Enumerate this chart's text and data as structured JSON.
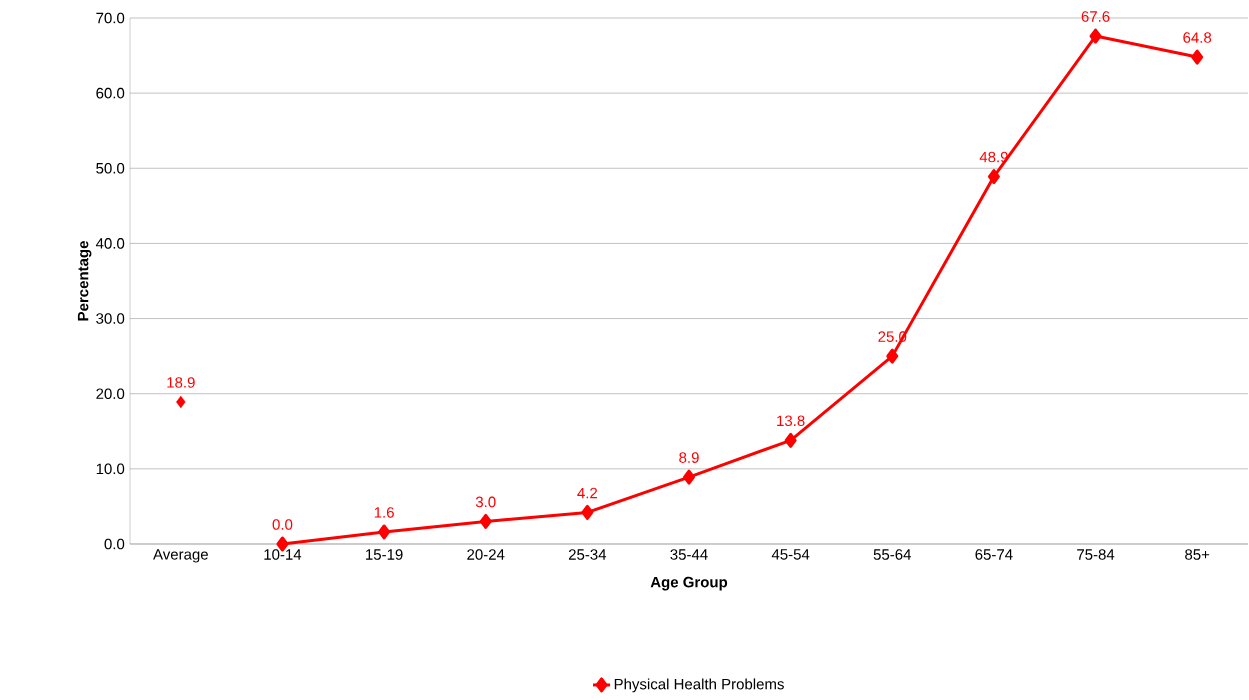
{
  "chart_data": {
    "type": "line",
    "xlabel": "Age Group",
    "ylabel": "Percentage",
    "categories": [
      "Average",
      "10-14",
      "15-19",
      "20-24",
      "25-34",
      "35-44",
      "45-54",
      "55-64",
      "65-74",
      "75-84",
      "85+"
    ],
    "series": [
      {
        "name": "Physical Health Problems",
        "color": "#ff0000",
        "values": [
          null,
          0.0,
          1.6,
          3.0,
          4.2,
          8.9,
          13.8,
          25.0,
          48.9,
          67.6,
          64.8
        ],
        "value_labels": [
          null,
          "0.0",
          "1.6",
          "3.0",
          "4.2",
          "8.9",
          "13.8",
          "25.0",
          "48.9",
          "67.6",
          "64.8"
        ]
      },
      {
        "type": "scatter",
        "color": "#ff0000",
        "values": [
          18.9,
          null,
          null,
          null,
          null,
          null,
          null,
          null,
          null,
          null,
          null
        ],
        "value_labels": [
          "18.9",
          null,
          null,
          null,
          null,
          null,
          null,
          null,
          null,
          null,
          null
        ]
      }
    ],
    "ylim": [
      0,
      70
    ],
    "yticks": [
      {
        "value": 0,
        "label": "0.0"
      },
      {
        "value": 10,
        "label": "10.0"
      },
      {
        "value": 20,
        "label": "20.0"
      },
      {
        "value": 30,
        "label": "30.0"
      },
      {
        "value": 40,
        "label": "40.0"
      },
      {
        "value": 50,
        "label": "50.0"
      },
      {
        "value": 60,
        "label": "60.0"
      },
      {
        "value": 70,
        "label": "70.0"
      }
    ],
    "grid": "y",
    "legend": "bottom",
    "marker": "diamond"
  }
}
